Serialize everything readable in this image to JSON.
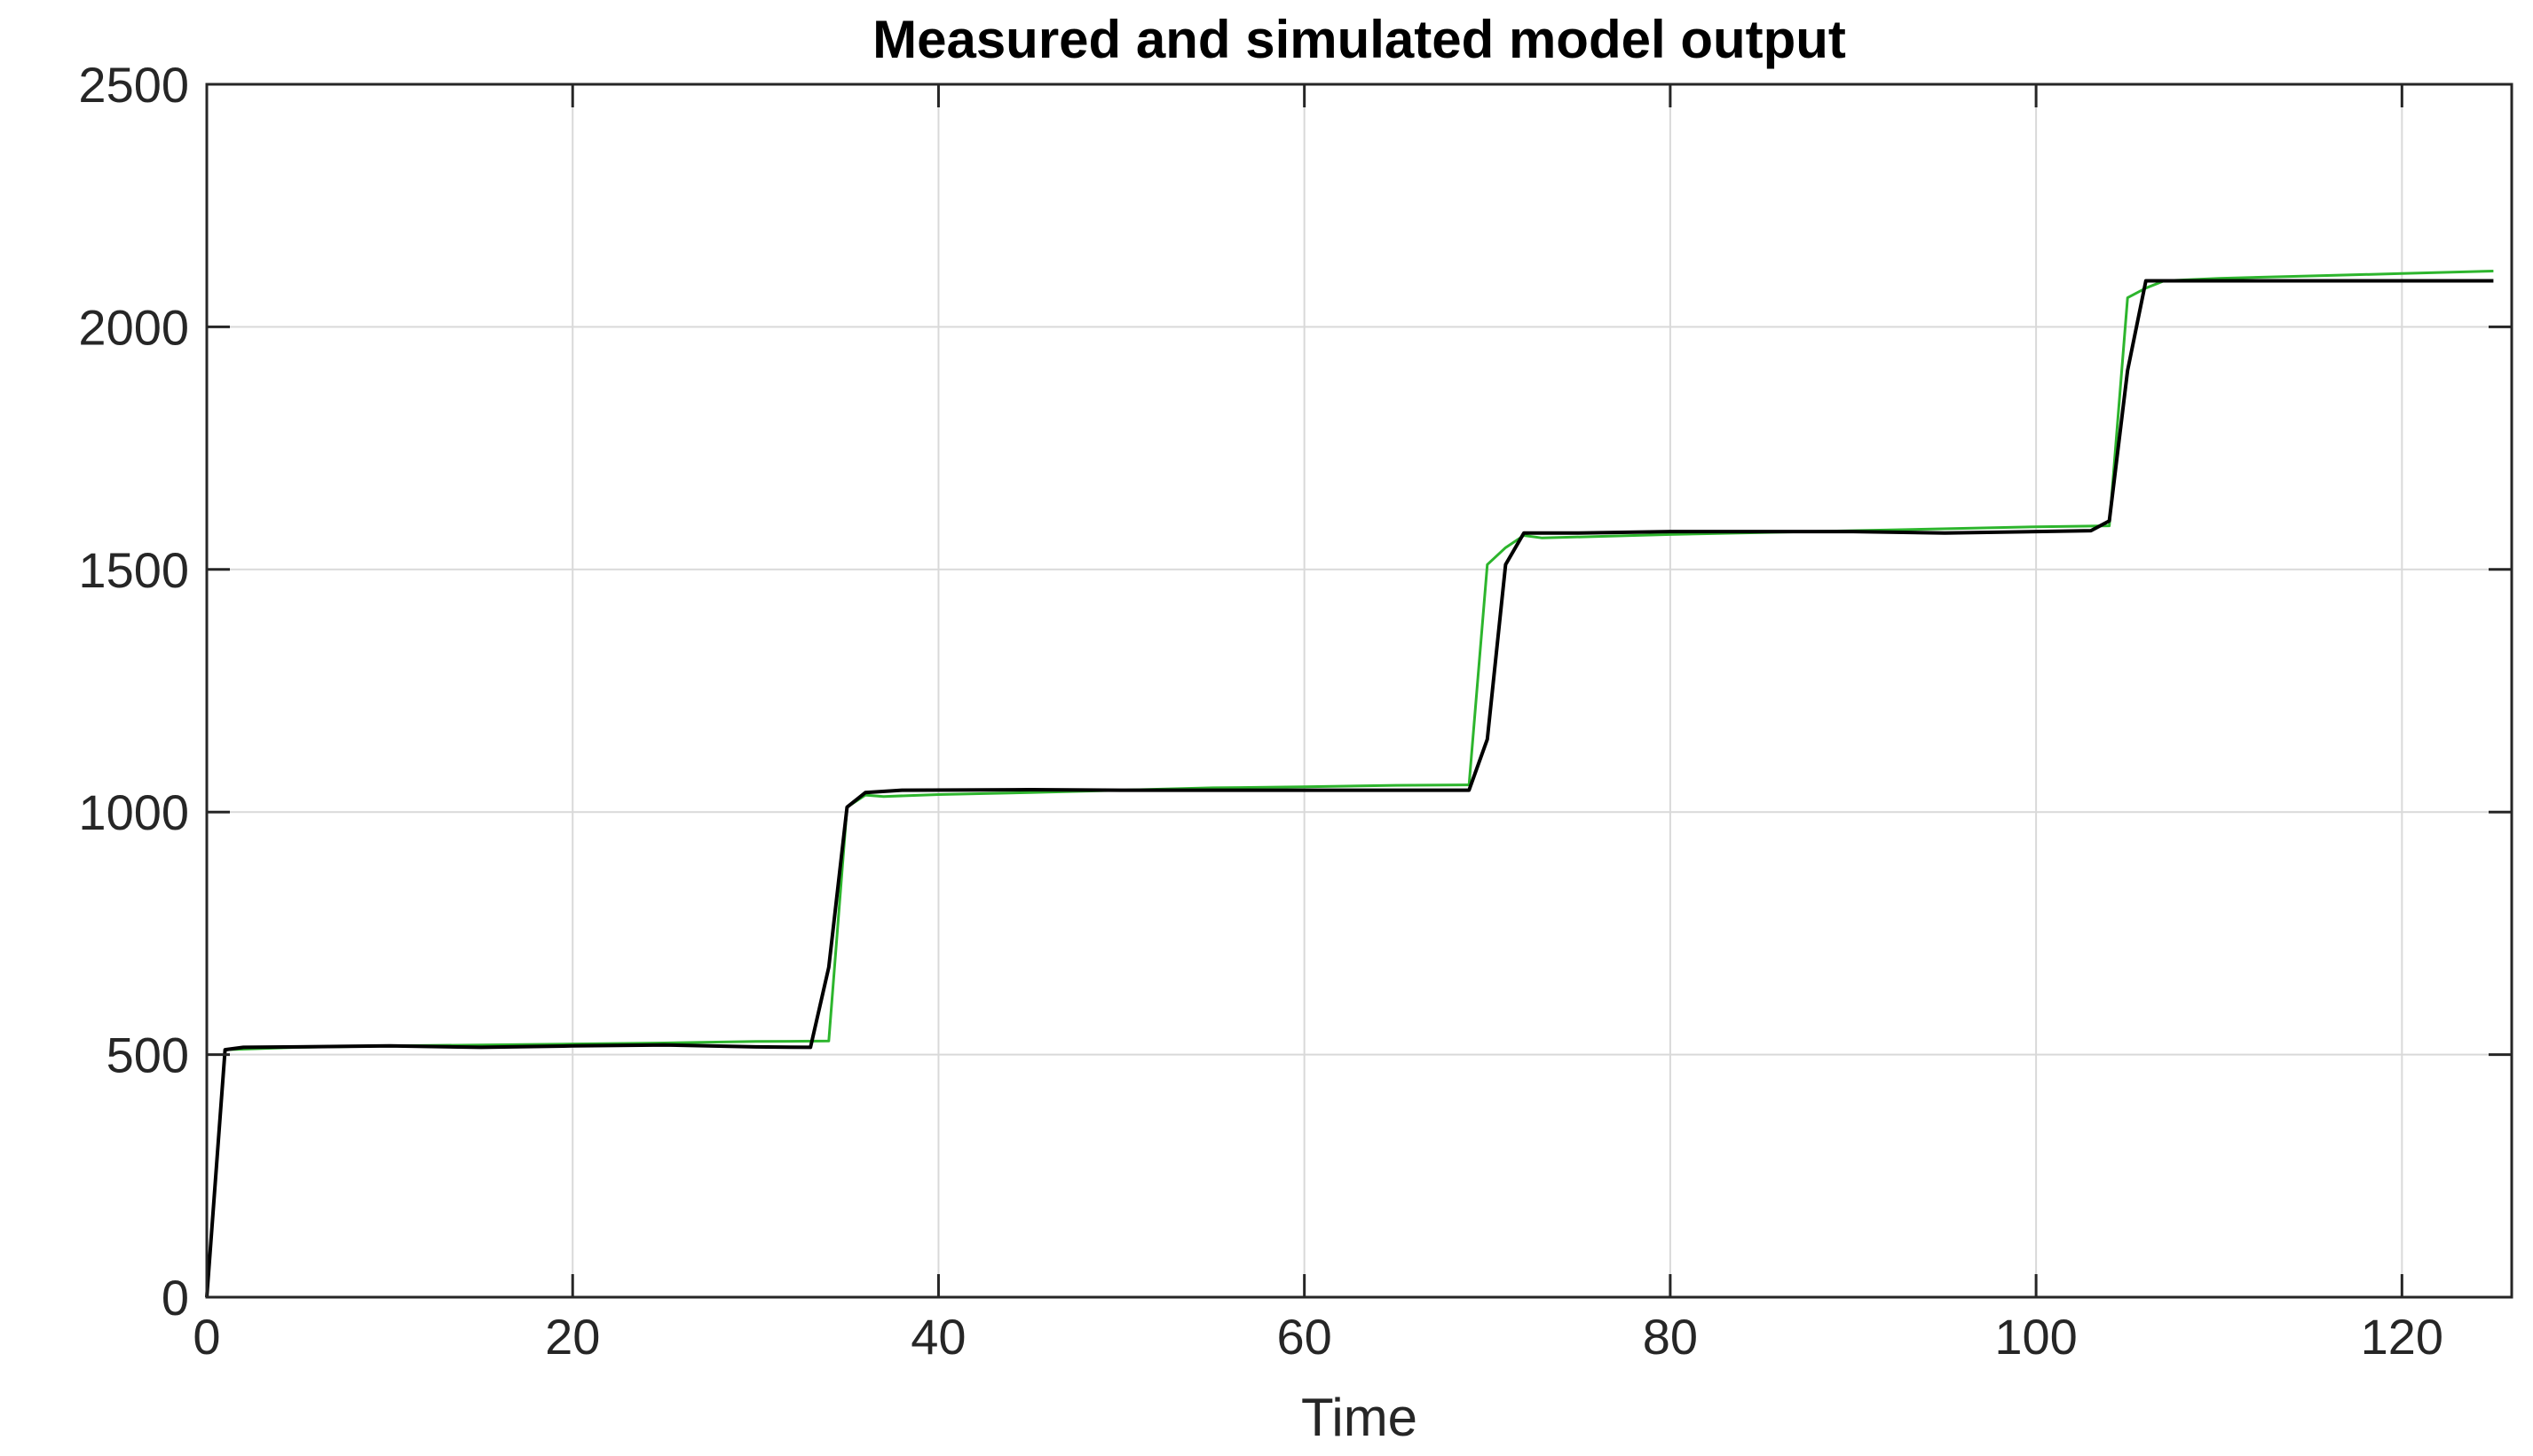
{
  "chart_data": {
    "type": "line",
    "title": "Measured and simulated model output",
    "xlabel": "Time",
    "ylabel": "",
    "xlim": [
      0,
      126
    ],
    "ylim": [
      0,
      2500
    ],
    "xticks": [
      0,
      20,
      40,
      60,
      80,
      100,
      120
    ],
    "yticks": [
      0,
      500,
      1000,
      1500,
      2000,
      2500
    ],
    "grid": true,
    "series": [
      {
        "color": "#2db52d",
        "x": [
          0,
          1,
          5,
          10,
          15,
          20,
          25,
          30,
          34,
          35,
          36,
          37,
          40,
          45,
          50,
          55,
          60,
          65,
          69,
          70,
          71,
          72,
          73,
          80,
          90,
          100,
          104,
          105,
          106,
          107,
          110,
          115,
          120,
          125
        ],
        "y": [
          0,
          510,
          515,
          518,
          520,
          522,
          524,
          527,
          528,
          1010,
          1035,
          1032,
          1036,
          1040,
          1045,
          1050,
          1052,
          1055,
          1056,
          1510,
          1545,
          1570,
          1565,
          1572,
          1580,
          1588,
          1590,
          2060,
          2080,
          2095,
          2100,
          2105,
          2110,
          2115
        ]
      },
      {
        "color": "#000000",
        "x": [
          0,
          1,
          2,
          5,
          10,
          15,
          20,
          25,
          30,
          33,
          34,
          35,
          36,
          38,
          45,
          50,
          60,
          65,
          69,
          70,
          71,
          72,
          75,
          80,
          90,
          95,
          100,
          103,
          104,
          105,
          106,
          110,
          115,
          120,
          125
        ],
        "y": [
          0,
          510,
          515,
          516,
          518,
          515,
          518,
          520,
          516,
          515,
          680,
          1010,
          1040,
          1045,
          1046,
          1045,
          1045,
          1045,
          1045,
          1150,
          1510,
          1575,
          1575,
          1578,
          1578,
          1575,
          1578,
          1580,
          1600,
          1910,
          2095,
          2095,
          2095,
          2095,
          2095
        ]
      }
    ]
  }
}
